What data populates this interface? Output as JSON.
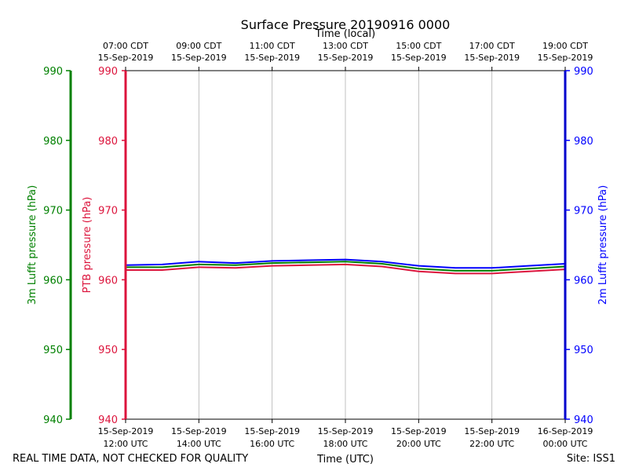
{
  "chart_data": {
    "type": "line",
    "title": "Surface Pressure 20190916 0000",
    "top_xlabel": "Time (local)",
    "bottom_xlabel": "Time (UTC)",
    "footer_left": "REAL TIME DATA, NOT CHECKED FOR QUALITY",
    "footer_right": "Site: ISS1",
    "x_range_hours": [
      0,
      12
    ],
    "y_range": [
      940,
      990
    ],
    "y_ticks": [
      "940",
      "950",
      "960",
      "970",
      "980",
      "990"
    ],
    "grid": true,
    "top_ticks": [
      {
        "h": 0,
        "l1": "07:00 CDT",
        "l2": "15-Sep-2019"
      },
      {
        "h": 2,
        "l1": "09:00 CDT",
        "l2": "15-Sep-2019"
      },
      {
        "h": 4,
        "l1": "11:00 CDT",
        "l2": "15-Sep-2019"
      },
      {
        "h": 6,
        "l1": "13:00 CDT",
        "l2": "15-Sep-2019"
      },
      {
        "h": 8,
        "l1": "15:00 CDT",
        "l2": "15-Sep-2019"
      },
      {
        "h": 10,
        "l1": "17:00 CDT",
        "l2": "15-Sep-2019"
      },
      {
        "h": 12,
        "l1": "19:00 CDT",
        "l2": "15-Sep-2019"
      }
    ],
    "bottom_ticks": [
      {
        "h": 0,
        "l1": "15-Sep-2019",
        "l2": "12:00 UTC"
      },
      {
        "h": 2,
        "l1": "15-Sep-2019",
        "l2": "14:00 UTC"
      },
      {
        "h": 4,
        "l1": "15-Sep-2019",
        "l2": "16:00 UTC"
      },
      {
        "h": 6,
        "l1": "15-Sep-2019",
        "l2": "18:00 UTC"
      },
      {
        "h": 8,
        "l1": "15-Sep-2019",
        "l2": "20:00 UTC"
      },
      {
        "h": 10,
        "l1": "15-Sep-2019",
        "l2": "22:00 UTC"
      },
      {
        "h": 12,
        "l1": "16-Sep-2019",
        "l2": "00:00 UTC"
      }
    ],
    "axes": [
      {
        "name": "3m Lufft pressure (hPa)",
        "color": "#008000"
      },
      {
        "name": "PTB pressure (hPa)",
        "color": "#dc143c"
      },
      {
        "name": "2m Lufft pressure (hPa)",
        "color": "#0000ff"
      }
    ],
    "series": [
      {
        "name": "PTB pressure",
        "color": "#dc143c",
        "x": [
          0,
          1,
          2,
          3,
          4,
          5,
          6,
          7,
          8,
          9,
          10,
          11,
          12
        ],
        "values": [
          961.4,
          961.4,
          961.8,
          961.7,
          962.0,
          962.1,
          962.2,
          961.9,
          961.2,
          960.9,
          960.9,
          961.2,
          961.5
        ]
      },
      {
        "name": "3m Lufft pressure",
        "color": "#008000",
        "x": [
          0,
          1,
          2,
          3,
          4,
          5,
          6,
          7,
          8,
          9,
          10,
          11,
          12
        ],
        "values": [
          961.8,
          961.8,
          962.2,
          962.1,
          962.4,
          962.5,
          962.6,
          962.3,
          961.6,
          961.3,
          961.3,
          961.6,
          961.9
        ]
      },
      {
        "name": "2m Lufft pressure",
        "color": "#0000ff",
        "x": [
          0,
          1,
          2,
          3,
          4,
          5,
          6,
          7,
          8,
          9,
          10,
          11,
          12
        ],
        "values": [
          962.1,
          962.2,
          962.6,
          962.4,
          962.7,
          962.8,
          962.9,
          962.6,
          962.0,
          961.7,
          961.7,
          962.0,
          962.3
        ]
      }
    ]
  }
}
